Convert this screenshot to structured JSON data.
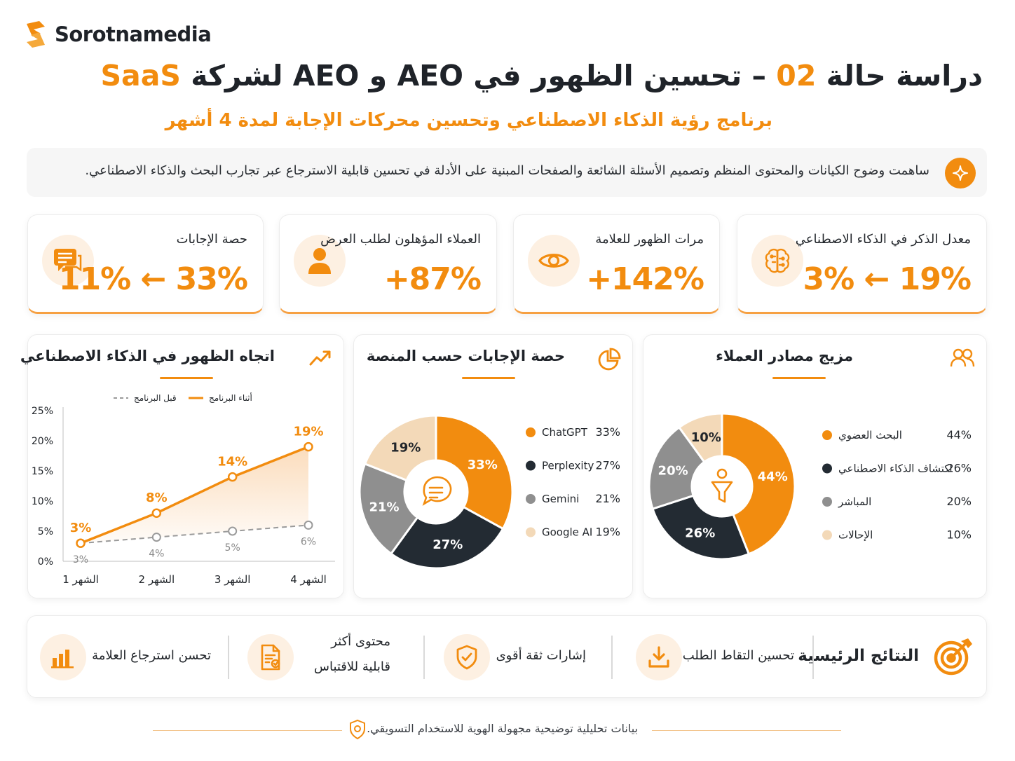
{
  "brand": {
    "name": "Sorotnamedia"
  },
  "header": {
    "title_prefix": "دراسة حالة",
    "title_number": "02",
    "title_middle": "– تحسين الظهور في AEO و AEO لشركة",
    "title_highlight": "SaaS",
    "subtitle": "برنامج رؤية الذكاء الاصطناعي وتحسين محركات الإجابة  لمدة 4 أشهر"
  },
  "banner": {
    "text": "ساهمت وضوح الكيانات والمحتوى المنظم وتصميم الأسئلة الشائعة والصفحات المبنية على الأدلة في تحسين قابلية الاسترجاع عبر تجارب البحث والذكاء الاصطناعي."
  },
  "kpis": [
    {
      "label": "معدل الذكر في الذكاء الاصطناعي",
      "value": "3% ← 19%",
      "icon": "brain-icon"
    },
    {
      "label": "مرات الظهور للعلامة",
      "value": "+142%",
      "icon": "eye-icon"
    },
    {
      "label": "العملاء المؤهلون لطلب العرض",
      "value": "+87%",
      "icon": "user-icon"
    },
    {
      "label": "حصة الإجابات",
      "value": "11% ← 33%",
      "icon": "chat-icon"
    }
  ],
  "cards": {
    "trend_title": "اتجاه الظهور في الذكاء الاصطناعي",
    "share_title": "حصة الإجابات حسب المنصة",
    "mix_title": "مزيج مصادر العملاء"
  },
  "chart_data": [
    {
      "type": "line",
      "title": "اتجاه الظهور في الذكاء الاصطناعي",
      "categories": [
        "الشهر 1",
        "الشهر 2",
        "الشهر 3",
        "الشهر 4"
      ],
      "series": [
        {
          "name": "أثناء البرنامج",
          "values": [
            3,
            8,
            14,
            19
          ],
          "labels": [
            "3%",
            "8%",
            "14%",
            "19%"
          ],
          "color": "#f28c0f"
        },
        {
          "name": "قبل البرنامج",
          "values": [
            3,
            4,
            5,
            6
          ],
          "labels": [
            "3%",
            "4%",
            "5%",
            "6%"
          ],
          "color": "#9a9a9a"
        }
      ],
      "ylim": [
        0,
        25
      ],
      "yticks": [
        "0%",
        "5%",
        "10%",
        "15%",
        "20%",
        "25%"
      ],
      "legend_position": "top"
    },
    {
      "type": "pie",
      "title": "حصة الإجابات حسب المنصة",
      "slices": [
        {
          "label": "ChatGPT",
          "value": 33,
          "display": "33%",
          "color": "#f28c0f"
        },
        {
          "label": "Perplexity",
          "value": 27,
          "display": "27%",
          "color": "#232b33"
        },
        {
          "label": "Gemini",
          "value": 21,
          "display": "21%",
          "color": "#8f8f8f"
        },
        {
          "label": "Google AI",
          "value": 19,
          "display": "19%",
          "color": "#f3d9b8"
        }
      ]
    },
    {
      "type": "pie",
      "title": "مزيج مصادر العملاء",
      "slices": [
        {
          "label": "البحث العضوي",
          "value": 44,
          "display": "44%",
          "color": "#f28c0f"
        },
        {
          "label": "اكتشاف الذكاء الاصطناعي",
          "value": 26,
          "display": "26%",
          "color": "#232b33"
        },
        {
          "label": "المباشر",
          "value": 20,
          "display": "20%",
          "color": "#8f8f8f"
        },
        {
          "label": "الإحالات",
          "value": 10,
          "display": "10%",
          "color": "#f3d9b8"
        }
      ]
    }
  ],
  "results": {
    "title": "النتائج الرئيسية",
    "items": [
      {
        "text": "تحسين التقاط الطلب",
        "icon": "download-icon"
      },
      {
        "text": "إشارات ثقة أقوى",
        "icon": "shield-check-icon"
      },
      {
        "text_line1": "محتوى أكثر",
        "text_line2": "قابلية للاقتباس",
        "icon": "document-icon"
      },
      {
        "text": "تحسن استرجاع العلامة",
        "icon": "bar-chart-icon"
      }
    ]
  },
  "footer": {
    "text": "بيانات تحليلية توضيحية مجهولة الهوية للاستخدام التسويقي."
  }
}
